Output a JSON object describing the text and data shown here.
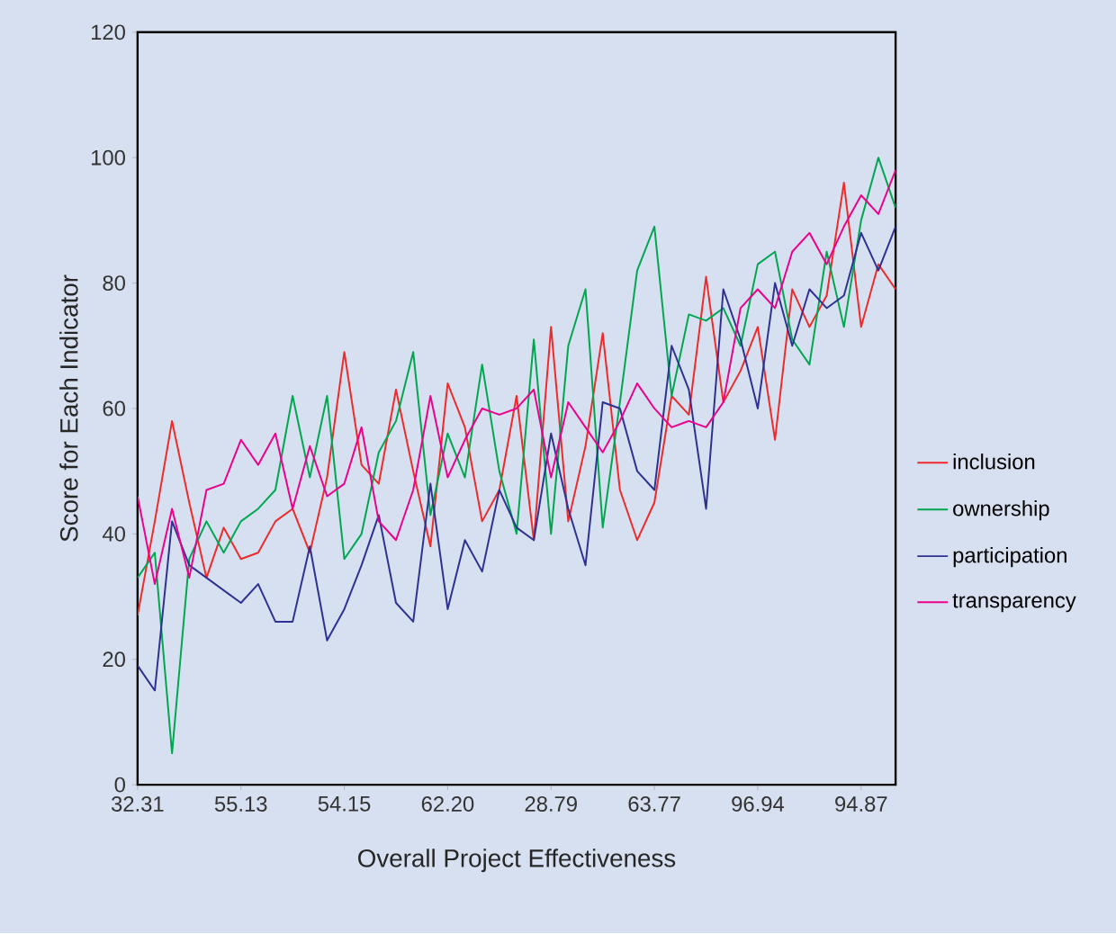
{
  "chart_data": {
    "type": "line",
    "xlabel": "Overall Project Effectiveness",
    "ylabel": "Score for Each Indicator",
    "categories": [
      "32.31",
      null,
      null,
      null,
      null,
      null,
      "55.13",
      null,
      null,
      null,
      null,
      null,
      "54.15",
      null,
      null,
      null,
      null,
      null,
      "62.20",
      null,
      null,
      null,
      null,
      null,
      "28.79",
      null,
      null,
      null,
      null,
      null,
      "63.77",
      null,
      null,
      null,
      null,
      null,
      "96.94",
      null,
      null,
      null,
      null,
      null,
      "94.87",
      null,
      null
    ],
    "ylim": [
      0,
      120
    ],
    "yticks": [
      0,
      20,
      40,
      60,
      80,
      100,
      120
    ],
    "legend": "right",
    "series": [
      {
        "name": "inclusion",
        "color": "#ee2a2a",
        "values": [
          27,
          42,
          58,
          45,
          33,
          41,
          36,
          37,
          42,
          44,
          37,
          49,
          69,
          51,
          48,
          63,
          50,
          38,
          64,
          57,
          42,
          47,
          62,
          39,
          73,
          42,
          54,
          72,
          47,
          39,
          45,
          62,
          59,
          81,
          61,
          66,
          73,
          55,
          79,
          73,
          78,
          96,
          73,
          83,
          79
        ]
      },
      {
        "name": "ownership",
        "color": "#00a650",
        "values": [
          33,
          37,
          5,
          36,
          42,
          37,
          42,
          44,
          47,
          62,
          49,
          62,
          36,
          40,
          53,
          58,
          69,
          43,
          56,
          49,
          67,
          50,
          40,
          71,
          40,
          70,
          79,
          41,
          61,
          82,
          89,
          62,
          75,
          74,
          76,
          70,
          83,
          85,
          71,
          67,
          85,
          73,
          90,
          100,
          92
        ]
      },
      {
        "name": "participation",
        "color": "#2e3192",
        "values": [
          19,
          15,
          42,
          35,
          33,
          31,
          29,
          32,
          26,
          26,
          38,
          23,
          28,
          35,
          43,
          29,
          26,
          48,
          28,
          39,
          34,
          47,
          41,
          39,
          56,
          44,
          35,
          61,
          60,
          50,
          47,
          70,
          63,
          44,
          79,
          71,
          60,
          80,
          70,
          79,
          76,
          78,
          88,
          82,
          89
        ]
      },
      {
        "name": "transparency",
        "color": "#ec008c",
        "values": [
          46,
          32,
          44,
          33,
          47,
          48,
          55,
          51,
          56,
          44,
          54,
          46,
          48,
          57,
          42,
          39,
          47,
          62,
          49,
          55,
          60,
          59,
          60,
          63,
          49,
          61,
          57,
          53,
          58,
          64,
          60,
          57,
          58,
          57,
          61,
          76,
          79,
          76,
          85,
          88,
          83,
          89,
          94,
          91,
          98
        ]
      }
    ]
  }
}
